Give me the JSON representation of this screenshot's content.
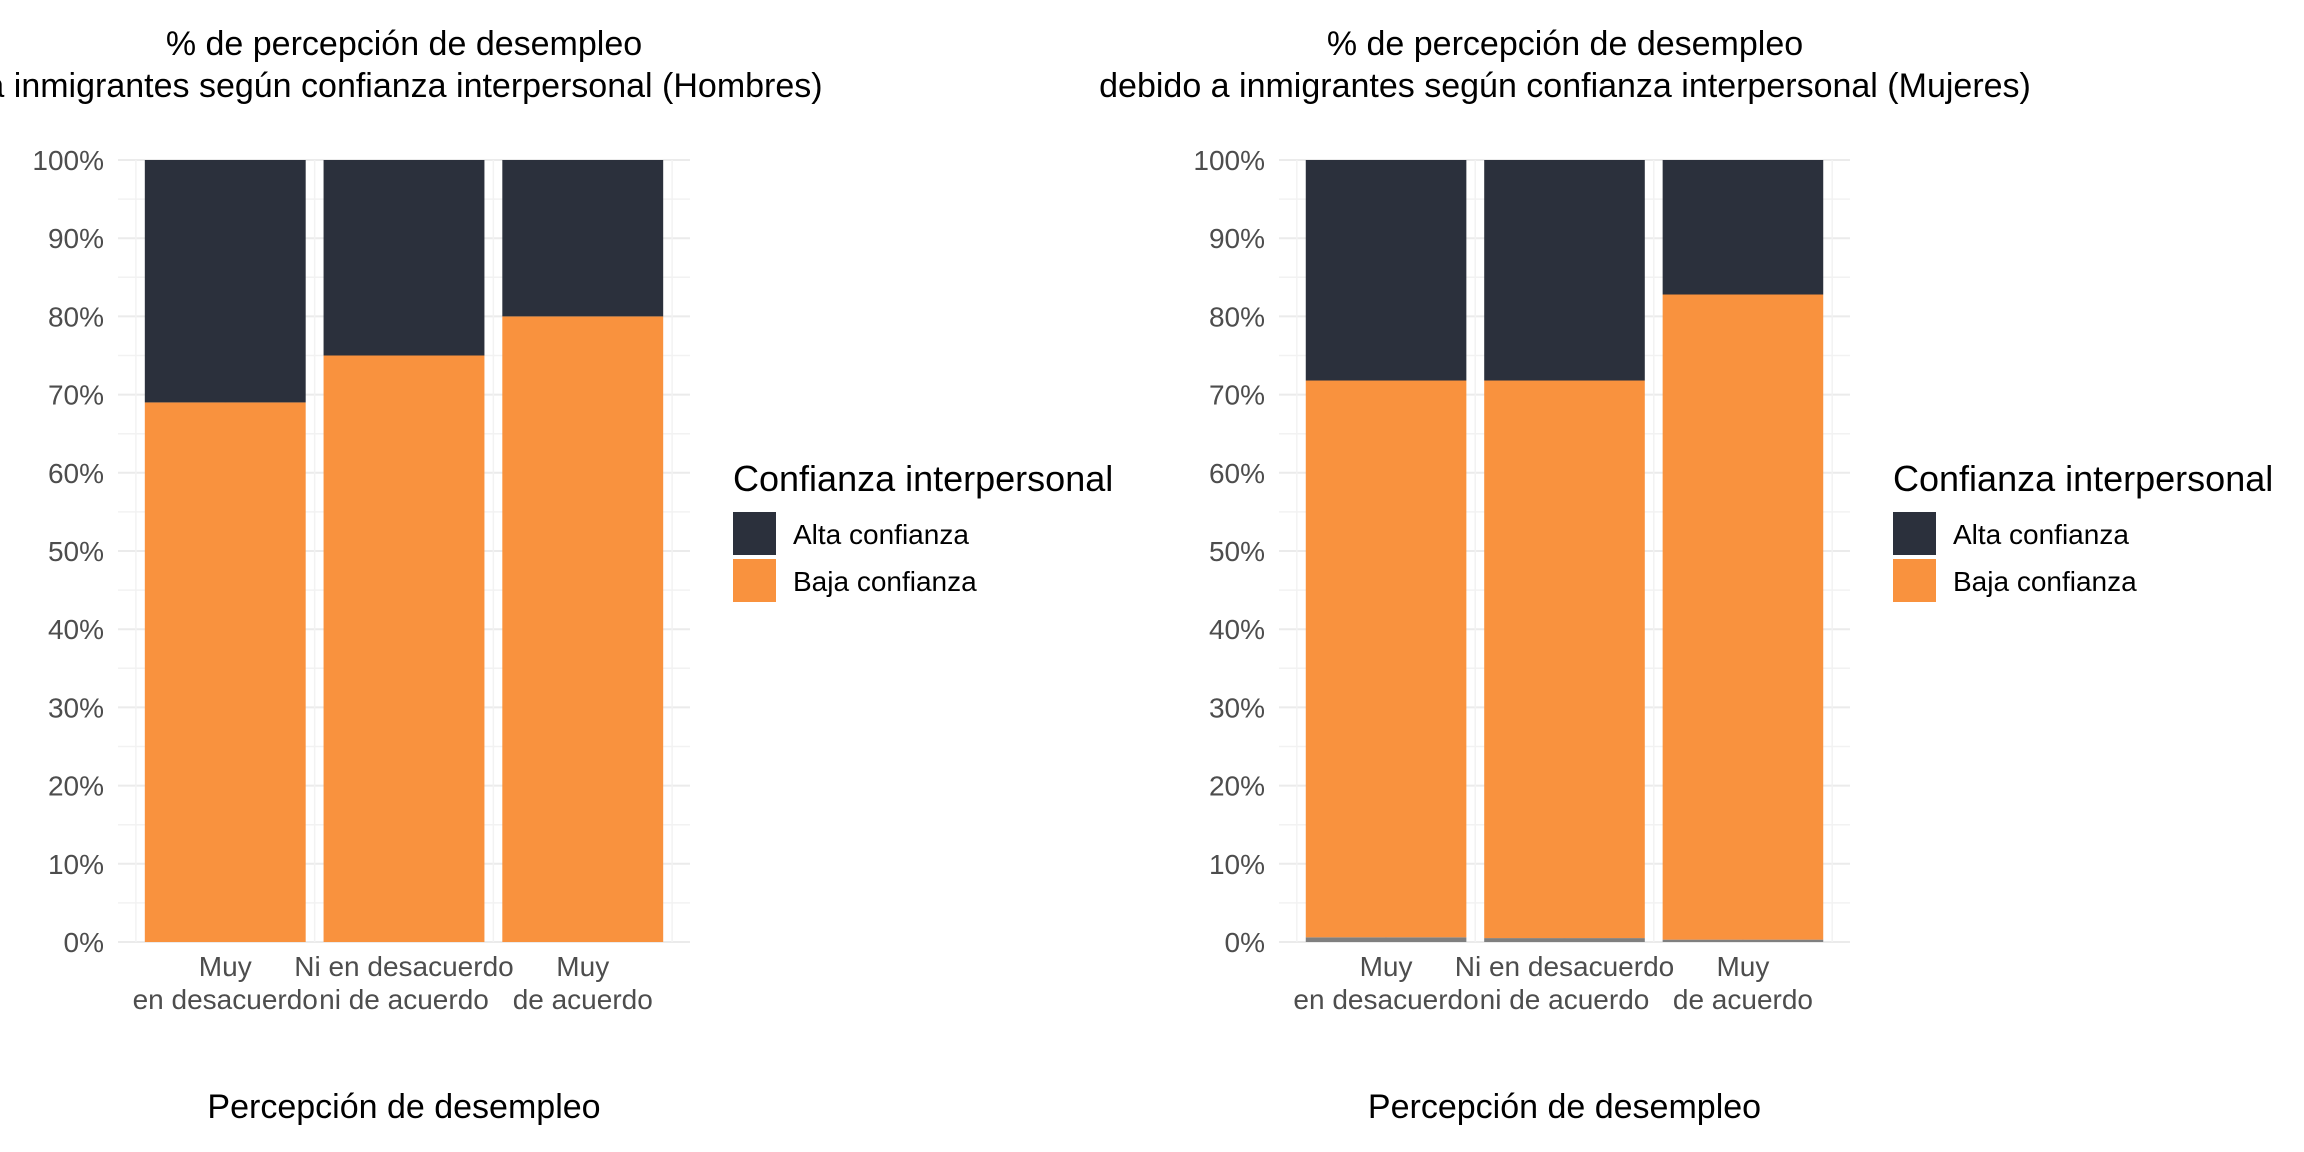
{
  "chart_data": [
    {
      "type": "bar",
      "stacked": true,
      "percent": true,
      "title": [
        "% de percepción de desempleo",
        "a inmigrantes según confianza interpersonal (Hombres)"
      ],
      "xlabel": "Percepción de desempleo",
      "ylabel": "",
      "ylim": [
        0,
        100
      ],
      "yticks": [
        "0%",
        "10%",
        "20%",
        "30%",
        "40%",
        "50%",
        "60%",
        "70%",
        "80%",
        "90%",
        "100%"
      ],
      "categories": [
        [
          "Muy",
          "en desacuerdo"
        ],
        [
          "Ni en desacuerdo",
          "ni de acuerdo"
        ],
        [
          "Muy",
          "de acuerdo"
        ]
      ],
      "series": [
        {
          "name": "Baja confianza",
          "values": [
            69,
            75,
            80
          ]
        },
        {
          "name": "Alta confianza",
          "values": [
            31,
            25,
            20
          ]
        }
      ],
      "legend": {
        "title": "Confianza interpersonal",
        "position": "right",
        "entries": [
          "Alta confianza",
          "Baja confianza"
        ]
      },
      "grid": true
    },
    {
      "type": "bar",
      "stacked": true,
      "percent": true,
      "title": [
        "% de percepción de desempleo",
        "debido a inmigrantes según confianza interpersonal (Mujeres)"
      ],
      "xlabel": "Percepción de desempleo",
      "ylabel": "",
      "ylim": [
        0,
        100
      ],
      "yticks": [
        "0%",
        "10%",
        "20%",
        "30%",
        "40%",
        "50%",
        "60%",
        "70%",
        "80%",
        "90%",
        "100%"
      ],
      "categories": [
        [
          "Muy",
          "en desacuerdo"
        ],
        [
          "Ni en desacuerdo",
          "ni de acuerdo"
        ],
        [
          "Muy",
          "de acuerdo"
        ]
      ],
      "series": [
        {
          "name": "",
          "values": [
            0.6,
            0.5,
            0.3
          ]
        },
        {
          "name": "Baja confianza",
          "values": [
            71.2,
            71.3,
            82.5
          ]
        },
        {
          "name": "Alta confianza",
          "values": [
            28.2,
            28.2,
            17.2
          ]
        }
      ],
      "legend": {
        "title": "Confianza interpersonal",
        "position": "right",
        "entries": [
          "Alta confianza",
          "Baja confianza"
        ]
      },
      "grid": true
    }
  ],
  "colors": {
    "Alta confianza": "#2b303c",
    "Baja confianza": "#f9923e",
    "missing": "#7f7f7f"
  }
}
